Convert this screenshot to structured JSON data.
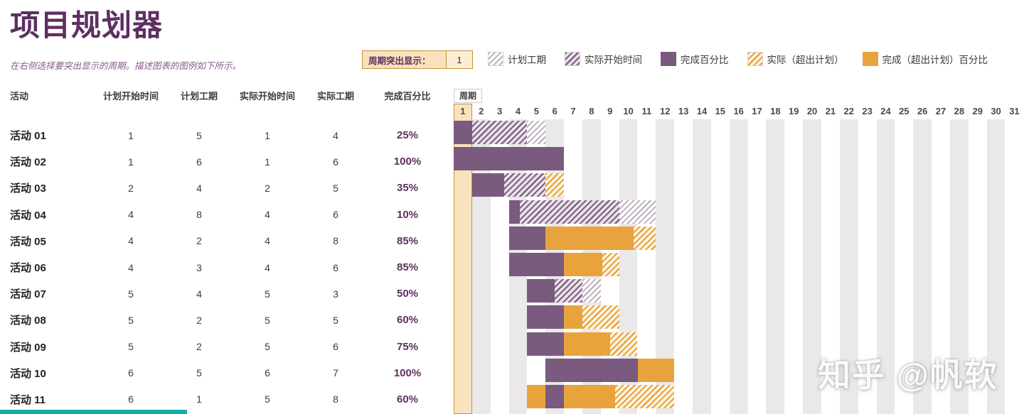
{
  "header": {
    "title": "项目规划器",
    "subtitle": "在右侧选择要突出显示的周期。描述图表的图例如下所示。",
    "highlight_label": "周期突出显示：",
    "highlight_value": "1"
  },
  "legend": [
    {
      "label": "计划工期"
    },
    {
      "label": "实际开始时间"
    },
    {
      "label": "完成百分比"
    },
    {
      "label": "实际（超出计划）"
    },
    {
      "label": "完成（超出计划）百分比"
    }
  ],
  "table": {
    "columns": [
      "活动",
      "计划开始时间",
      "计划工期",
      "实际开始时间",
      "实际工期",
      "完成百分比"
    ],
    "rows": [
      {
        "activity": "活动 01",
        "plan_start": "1",
        "plan_duration": "5",
        "actual_start": "1",
        "actual_duration": "4",
        "percent": "25%"
      },
      {
        "activity": "活动 02",
        "plan_start": "1",
        "plan_duration": "6",
        "actual_start": "1",
        "actual_duration": "6",
        "percent": "100%"
      },
      {
        "activity": "活动 03",
        "plan_start": "2",
        "plan_duration": "4",
        "actual_start": "2",
        "actual_duration": "5",
        "percent": "35%"
      },
      {
        "activity": "活动 04",
        "plan_start": "4",
        "plan_duration": "8",
        "actual_start": "4",
        "actual_duration": "6",
        "percent": "10%"
      },
      {
        "activity": "活动 05",
        "plan_start": "4",
        "plan_duration": "2",
        "actual_start": "4",
        "actual_duration": "8",
        "percent": "85%"
      },
      {
        "activity": "活动 06",
        "plan_start": "4",
        "plan_duration": "3",
        "actual_start": "4",
        "actual_duration": "6",
        "percent": "85%"
      },
      {
        "activity": "活动 07",
        "plan_start": "5",
        "plan_duration": "4",
        "actual_start": "5",
        "actual_duration": "3",
        "percent": "50%"
      },
      {
        "activity": "活动 08",
        "plan_start": "5",
        "plan_duration": "2",
        "actual_start": "5",
        "actual_duration": "5",
        "percent": "60%"
      },
      {
        "activity": "活动 09",
        "plan_start": "5",
        "plan_duration": "2",
        "actual_start": "5",
        "actual_duration": "6",
        "percent": "75%"
      },
      {
        "activity": "活动 10",
        "plan_start": "6",
        "plan_duration": "5",
        "actual_start": "6",
        "actual_duration": "7",
        "percent": "100%"
      },
      {
        "activity": "活动 11",
        "plan_start": "6",
        "plan_duration": "1",
        "actual_start": "5",
        "actual_duration": "8",
        "percent": "60%"
      }
    ]
  },
  "chart_data": {
    "type": "gantt",
    "period_label": "周期",
    "periods": {
      "start": 1,
      "end": 31
    },
    "highlight_period": 1,
    "legend_position": "top",
    "rows": [
      {
        "name": "活动 01",
        "plan_start": 1,
        "plan_duration": 5,
        "actual_start": 1,
        "actual_duration": 4,
        "percent_complete": 25
      },
      {
        "name": "活动 02",
        "plan_start": 1,
        "plan_duration": 6,
        "actual_start": 1,
        "actual_duration": 6,
        "percent_complete": 100
      },
      {
        "name": "活动 03",
        "plan_start": 2,
        "plan_duration": 4,
        "actual_start": 2,
        "actual_duration": 5,
        "percent_complete": 35
      },
      {
        "name": "活动 04",
        "plan_start": 4,
        "plan_duration": 8,
        "actual_start": 4,
        "actual_duration": 6,
        "percent_complete": 10
      },
      {
        "name": "活动 05",
        "plan_start": 4,
        "plan_duration": 2,
        "actual_start": 4,
        "actual_duration": 8,
        "percent_complete": 85
      },
      {
        "name": "活动 06",
        "plan_start": 4,
        "plan_duration": 3,
        "actual_start": 4,
        "actual_duration": 6,
        "percent_complete": 85
      },
      {
        "name": "活动 07",
        "plan_start": 5,
        "plan_duration": 4,
        "actual_start": 5,
        "actual_duration": 3,
        "percent_complete": 50
      },
      {
        "name": "活动 08",
        "plan_start": 5,
        "plan_duration": 2,
        "actual_start": 5,
        "actual_duration": 5,
        "percent_complete": 60
      },
      {
        "name": "活动 09",
        "plan_start": 5,
        "plan_duration": 2,
        "actual_start": 5,
        "actual_duration": 6,
        "percent_complete": 75
      },
      {
        "name": "活动 10",
        "plan_start": 6,
        "plan_duration": 5,
        "actual_start": 6,
        "actual_duration": 7,
        "percent_complete": 100
      },
      {
        "name": "活动 11",
        "plan_start": 6,
        "plan_duration": 1,
        "actual_start": 5,
        "actual_duration": 8,
        "percent_complete": 60
      }
    ]
  },
  "watermark": "知乎 @帆软",
  "colors": {
    "title_purple": "#5E2F61",
    "bar_purple": "#7A5A7E",
    "bar_orange": "#E8A33D",
    "highlight_fill": "#F9E3BE",
    "highlight_border": "#C9913B",
    "grid_gray": "#EAE8E9",
    "teal_accent": "#12AFA5"
  }
}
